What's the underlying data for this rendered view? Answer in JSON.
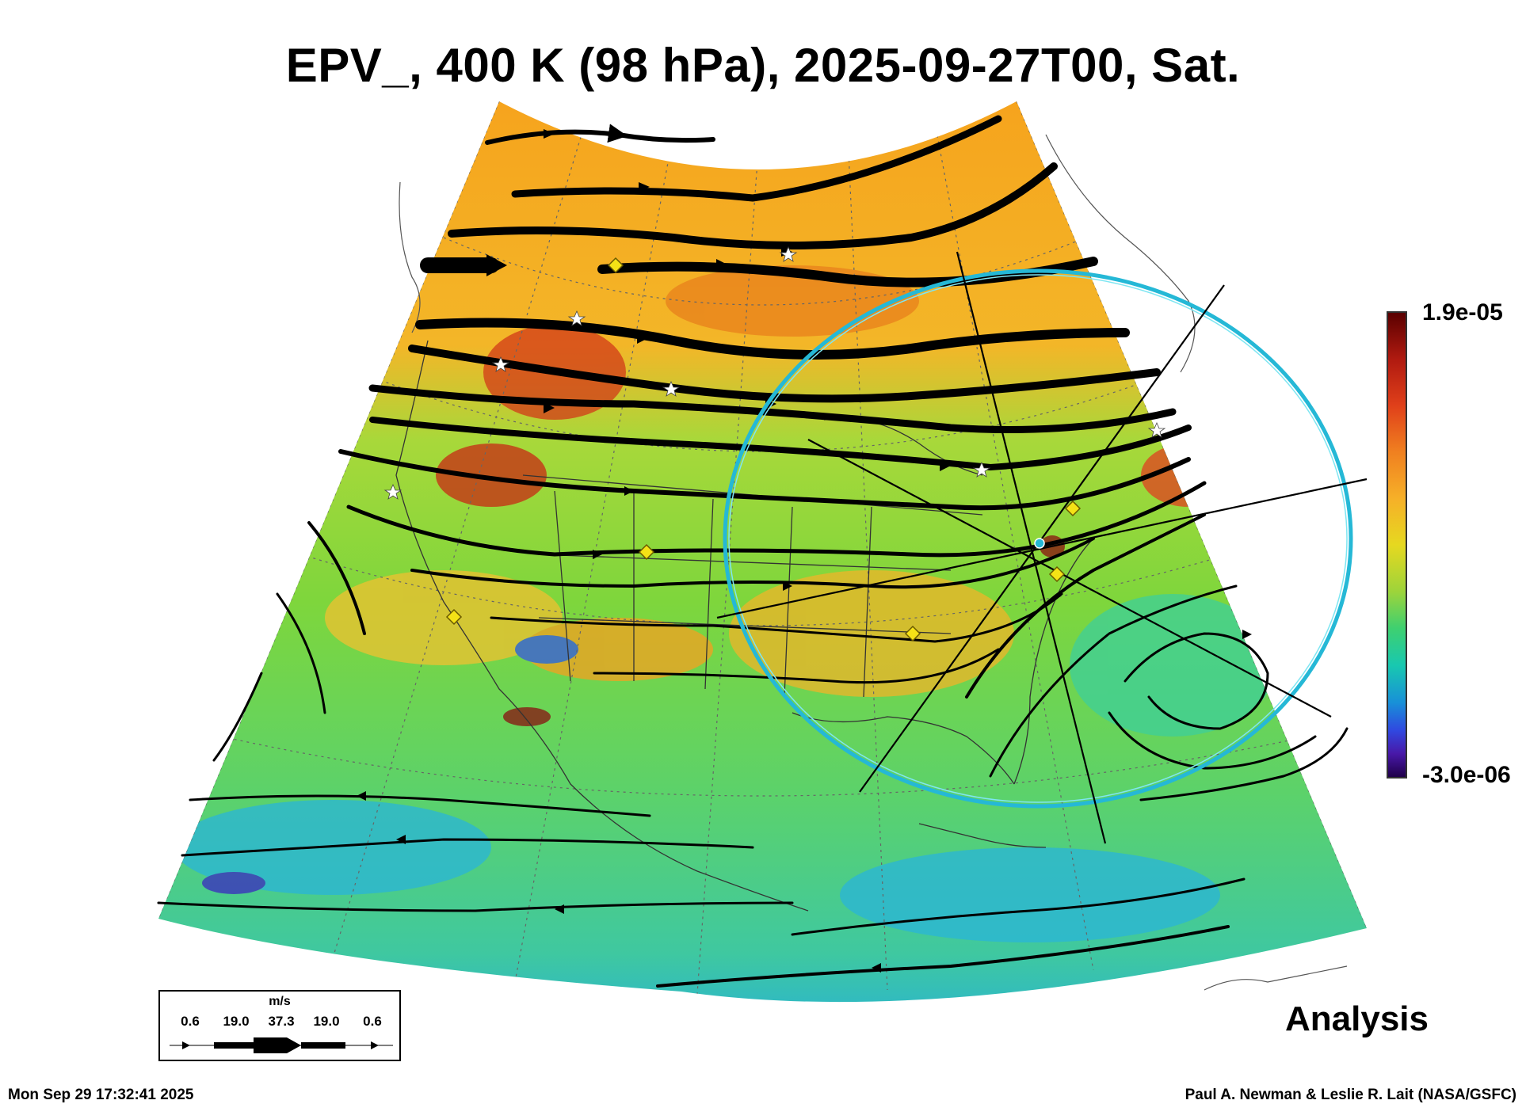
{
  "title": "EPV_, 400 K (98 hPa), 2025-09-27T00, Sat.",
  "colorbar": {
    "max_label": "1.9e-05",
    "min_label": "-3.0e-06",
    "colors": [
      "#5a0000",
      "#e0401a",
      "#f6b028",
      "#e6d820",
      "#3ed070",
      "#1890d8",
      "#20004a"
    ]
  },
  "panel_label": "Analysis",
  "wind_legend": {
    "units": "m/s",
    "values": [
      "0.6",
      "19.0",
      "37.3",
      "19.0",
      "0.6"
    ]
  },
  "footer": {
    "timestamp": "Mon Sep 29 17:32:41 2025",
    "credit": "Paul A. Newman & Leslie R. Lait (NASA/GSFC)"
  },
  "overlay": {
    "circle_color": "#25b8d6",
    "marker_color": "#f5e216",
    "station_color": "#ffffff"
  }
}
